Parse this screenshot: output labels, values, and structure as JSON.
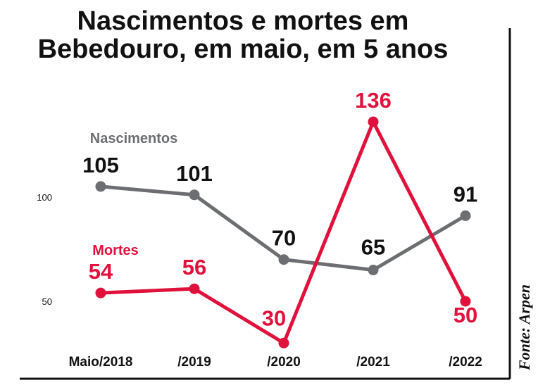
{
  "chart_data": {
    "type": "line",
    "title_lines": [
      "Nascimentos e mortes em",
      "Bebedouro, em maio, em 5 anos"
    ],
    "categories": [
      "Maio/2018",
      "/2019",
      "/2020",
      "/2021",
      "/2022"
    ],
    "series": [
      {
        "name": "Nascimentos",
        "values": [
          105,
          101,
          70,
          65,
          91
        ],
        "color": "#6d6e71"
      },
      {
        "name": "Mortes",
        "values": [
          54,
          56,
          30,
          136,
          50
        ],
        "color": "#e0123c"
      }
    ],
    "y_ticks": [
      50,
      100
    ],
    "ylim": [
      20,
      145
    ],
    "grid": false,
    "source": "Fonte: Arpen"
  }
}
